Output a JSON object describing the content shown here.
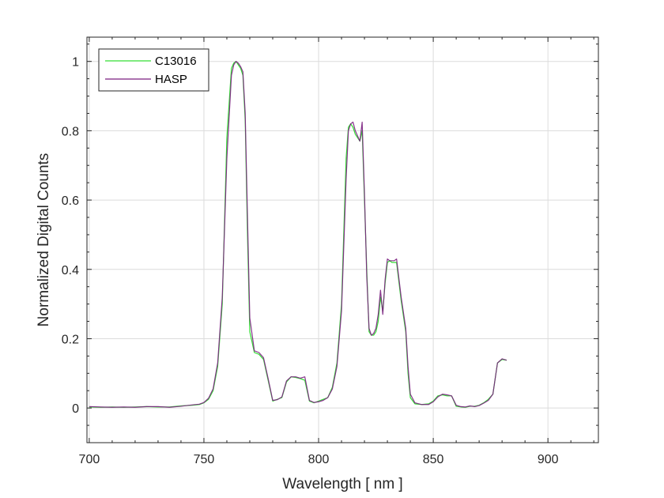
{
  "chart_data": {
    "type": "line",
    "title": "",
    "xlabel": "Wavelength [ nm ]",
    "ylabel": "Normalized Digital Counts",
    "xlim": [
      699,
      922
    ],
    "ylim": [
      -0.1,
      1.07
    ],
    "xticks": [
      700,
      750,
      800,
      850,
      900
    ],
    "yticks": [
      0,
      0.2,
      0.4,
      0.6,
      0.8,
      1
    ],
    "xtick_labels": [
      "700",
      "750",
      "800",
      "850",
      "900"
    ],
    "ytick_labels": [
      "0",
      "0.2",
      "0.4",
      "0.6",
      "0.8",
      "1"
    ],
    "grid": true,
    "legend_position": "top-left",
    "series": [
      {
        "name": "C13016",
        "color": "#33dd33",
        "x": [
          700,
          705,
          710,
          715,
          720,
          725,
          730,
          735,
          740,
          745,
          748,
          750,
          752,
          754,
          756,
          758,
          760,
          762,
          763,
          764,
          765,
          766,
          767,
          768,
          769,
          770,
          772,
          774,
          776,
          778,
          780,
          782,
          784,
          786,
          788,
          790,
          792,
          794,
          796,
          798,
          800,
          802,
          804,
          806,
          808,
          810,
          812,
          813,
          814,
          815,
          816,
          818,
          819,
          820,
          821,
          822,
          823,
          824,
          825,
          826,
          827,
          828,
          829,
          830,
          831,
          832,
          833,
          834,
          836,
          838,
          839,
          840,
          842,
          845,
          848,
          850,
          852,
          854,
          856,
          858,
          860,
          862,
          864,
          866,
          868,
          870,
          872,
          874,
          876,
          878,
          880,
          882
        ],
        "y": [
          0.003,
          0.002,
          0.003,
          0.002,
          0.003,
          0.004,
          0.003,
          0.003,
          0.006,
          0.008,
          0.01,
          0.015,
          0.025,
          0.05,
          0.12,
          0.3,
          0.78,
          0.98,
          0.995,
          1.0,
          0.99,
          0.98,
          0.96,
          0.83,
          0.5,
          0.22,
          0.16,
          0.155,
          0.14,
          0.08,
          0.02,
          0.025,
          0.03,
          0.075,
          0.09,
          0.088,
          0.085,
          0.08,
          0.02,
          0.015,
          0.02,
          0.025,
          0.03,
          0.06,
          0.13,
          0.3,
          0.72,
          0.81,
          0.82,
          0.81,
          0.79,
          0.77,
          0.8,
          0.6,
          0.4,
          0.22,
          0.21,
          0.21,
          0.22,
          0.25,
          0.32,
          0.28,
          0.36,
          0.42,
          0.425,
          0.42,
          0.42,
          0.42,
          0.31,
          0.22,
          0.1,
          0.03,
          0.012,
          0.01,
          0.012,
          0.02,
          0.035,
          0.038,
          0.035,
          0.035,
          0.005,
          0.003,
          0.002,
          0.005,
          0.005,
          0.008,
          0.015,
          0.025,
          0.04,
          0.13,
          0.14,
          0.138
        ]
      },
      {
        "name": "HASP",
        "color": "#7a1f7f",
        "x": [
          700,
          705,
          710,
          715,
          720,
          725,
          730,
          735,
          740,
          745,
          748,
          750,
          752,
          754,
          756,
          758,
          760,
          762,
          763,
          764,
          765,
          766,
          767,
          768,
          769,
          770,
          772,
          774,
          776,
          778,
          780,
          782,
          784,
          786,
          788,
          790,
          792,
          794,
          796,
          798,
          800,
          802,
          804,
          806,
          808,
          810,
          812,
          813,
          814,
          815,
          816,
          818,
          819,
          820,
          821,
          822,
          823,
          824,
          825,
          826,
          827,
          828,
          829,
          830,
          831,
          832,
          833,
          834,
          836,
          838,
          839,
          840,
          842,
          845,
          848,
          850,
          852,
          854,
          856,
          858,
          860,
          862,
          864,
          866,
          868,
          870,
          872,
          874,
          876,
          878,
          880,
          882
        ],
        "y": [
          0.004,
          0.003,
          0.002,
          0.003,
          0.002,
          0.004,
          0.004,
          0.002,
          0.005,
          0.009,
          0.011,
          0.016,
          0.028,
          0.055,
          0.13,
          0.32,
          0.72,
          0.96,
          0.99,
          1.0,
          0.995,
          0.985,
          0.97,
          0.85,
          0.55,
          0.26,
          0.165,
          0.16,
          0.145,
          0.085,
          0.022,
          0.024,
          0.032,
          0.078,
          0.09,
          0.09,
          0.086,
          0.09,
          0.022,
          0.016,
          0.018,
          0.022,
          0.03,
          0.055,
          0.12,
          0.28,
          0.66,
          0.8,
          0.82,
          0.825,
          0.8,
          0.77,
          0.825,
          0.62,
          0.38,
          0.23,
          0.21,
          0.215,
          0.23,
          0.27,
          0.34,
          0.27,
          0.37,
          0.43,
          0.425,
          0.425,
          0.425,
          0.43,
          0.32,
          0.23,
          0.12,
          0.04,
          0.015,
          0.01,
          0.01,
          0.018,
          0.032,
          0.04,
          0.038,
          0.035,
          0.008,
          0.004,
          0.003,
          0.006,
          0.004,
          0.007,
          0.014,
          0.022,
          0.04,
          0.13,
          0.142,
          0.138
        ]
      }
    ]
  }
}
